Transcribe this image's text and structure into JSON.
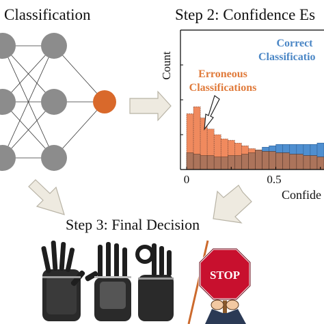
{
  "step1": {
    "title": "Classification"
  },
  "step2": {
    "title": "Step 2: Confidence Es"
  },
  "step3": {
    "title": "Step 3: Final Decision"
  },
  "network": {
    "input_nodes": 3,
    "hidden_nodes": 3,
    "output_nodes": 1
  },
  "colors": {
    "node_gray": "#8c8c8c",
    "output_node": "#d9692b",
    "erroneous": "#f08a5e",
    "correct": "#4f8fd0",
    "overlap": "#a0705a",
    "arrow_fill": "#eeeae0",
    "arrow_stroke": "#b8b3a5",
    "divider": "#cc6a2d",
    "stop_red": "#c8102e"
  },
  "chart_data": {
    "type": "bar",
    "title": "Step 2: Confidence Es",
    "ylabel": "Count",
    "xlabel": "Confide",
    "xlim": [
      0,
      0.77
    ],
    "ylim": [
      0,
      1
    ],
    "xticks": [
      "0",
      "0.5"
    ],
    "bin_width": 0.0385,
    "series": [
      {
        "name": "Erroneous Classifications",
        "bin_start": [
          0.0,
          0.0385,
          0.077,
          0.1155,
          0.154,
          0.1925,
          0.231,
          0.2695,
          0.308,
          0.3465,
          0.385,
          0.4235,
          0.462,
          0.5005,
          0.539,
          0.5775,
          0.616,
          0.6545,
          0.693,
          0.7315
        ],
        "values": [
          0.4,
          0.45,
          0.37,
          0.29,
          0.25,
          0.22,
          0.21,
          0.19,
          0.17,
          0.15,
          0.14,
          0.13,
          0.13,
          0.12,
          0.12,
          0.11,
          0.11,
          0.1,
          0.1,
          0.09
        ]
      },
      {
        "name": "Correct Classification",
        "bin_start": [
          0.0,
          0.0385,
          0.077,
          0.1155,
          0.154,
          0.1925,
          0.231,
          0.2695,
          0.308,
          0.3465,
          0.385,
          0.4235,
          0.462,
          0.5005,
          0.539,
          0.5775,
          0.616,
          0.6545,
          0.693,
          0.7315
        ],
        "values": [
          0.12,
          0.11,
          0.1,
          0.1,
          0.09,
          0.09,
          0.1,
          0.1,
          0.11,
          0.12,
          0.14,
          0.16,
          0.17,
          0.18,
          0.18,
          0.18,
          0.18,
          0.18,
          0.18,
          0.19
        ]
      }
    ],
    "annotations": [
      "Erroneous Classifications",
      "Correct Classification"
    ],
    "erroneous_label": {
      "line1": "Erroneous",
      "line2": "Classifications"
    },
    "correct_label": {
      "line1": "Correct",
      "line2": "Classificatio"
    }
  },
  "stop_sign": {
    "text": "STOP"
  }
}
